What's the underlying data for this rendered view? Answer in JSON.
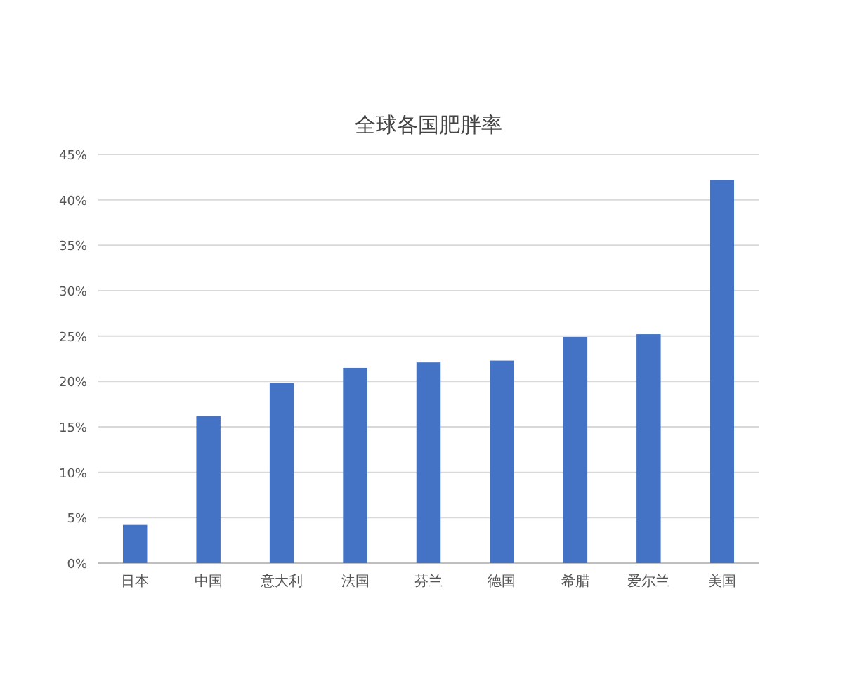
{
  "chart_data": {
    "type": "bar",
    "title": "全球各国肥胖率",
    "categories": [
      "日本",
      "中国",
      "意大利",
      "法国",
      "芬兰",
      "德国",
      "希腊",
      "爱尔兰",
      "美国"
    ],
    "values": [
      4.2,
      16.2,
      19.8,
      21.5,
      22.1,
      22.3,
      24.9,
      25.2,
      42.2
    ],
    "color": "#4472c4",
    "ylim": [
      0,
      45
    ],
    "yticks": [
      {
        "value": 0,
        "label": "0%"
      },
      {
        "value": 5,
        "label": "5%"
      },
      {
        "value": 10,
        "label": "10%"
      },
      {
        "value": 15,
        "label": "15%"
      },
      {
        "value": 20,
        "label": "20%"
      },
      {
        "value": 25,
        "label": "25%"
      },
      {
        "value": 30,
        "label": "30%"
      },
      {
        "value": 35,
        "label": "35%"
      },
      {
        "value": 40,
        "label": "40%"
      },
      {
        "value": 45,
        "label": "45%"
      }
    ],
    "grid": "y"
  }
}
